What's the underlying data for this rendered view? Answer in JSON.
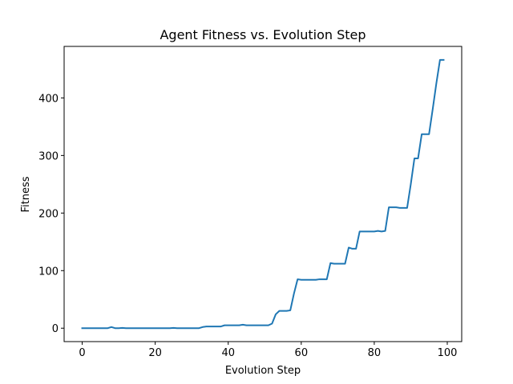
{
  "chart_data": {
    "type": "line",
    "title": "Agent Fitness vs. Evolution Step",
    "xlabel": "Evolution Step",
    "ylabel": "Fitness",
    "xlim": [
      -4.95,
      103.95
    ],
    "ylim": [
      -23.3,
      489.5
    ],
    "xticks": [
      0,
      20,
      40,
      60,
      80,
      100
    ],
    "yticks": [
      0,
      100,
      200,
      300,
      400
    ],
    "grid": false,
    "color": "#1f77b4",
    "series": [
      {
        "name": "fitness",
        "x": [
          0,
          1,
          2,
          3,
          4,
          5,
          6,
          7,
          8,
          9,
          10,
          11,
          12,
          13,
          14,
          15,
          16,
          17,
          18,
          19,
          20,
          21,
          22,
          23,
          24,
          25,
          26,
          27,
          28,
          29,
          30,
          31,
          32,
          33,
          34,
          35,
          36,
          37,
          38,
          39,
          40,
          41,
          42,
          43,
          44,
          45,
          46,
          47,
          48,
          49,
          50,
          51,
          52,
          53,
          54,
          55,
          56,
          57,
          58,
          59,
          60,
          61,
          62,
          63,
          64,
          65,
          66,
          67,
          68,
          69,
          70,
          71,
          72,
          73,
          74,
          75,
          76,
          77,
          78,
          79,
          80,
          81,
          82,
          83,
          84,
          85,
          86,
          87,
          88,
          89,
          90,
          91,
          92,
          93,
          94,
          95,
          96,
          97,
          98,
          99
        ],
        "y": [
          0,
          0,
          0,
          0,
          0,
          0,
          0,
          0,
          2,
          0,
          0,
          0.5,
          0,
          0,
          0,
          0,
          0,
          0,
          0,
          0,
          0,
          0,
          0,
          0,
          0,
          0.5,
          0,
          0,
          0,
          0,
          0,
          0,
          0,
          2,
          3,
          3,
          3,
          3,
          3,
          5,
          5,
          5,
          5,
          5,
          6,
          5,
          5,
          5,
          5,
          5,
          5,
          5,
          8,
          24,
          30,
          30,
          30,
          31,
          60,
          85,
          84,
          84,
          84,
          84,
          84,
          85,
          85,
          85,
          113,
          112,
          112,
          112,
          112,
          140,
          138,
          138,
          168,
          168,
          168,
          168,
          168,
          169,
          168,
          169,
          210,
          210,
          210,
          209,
          209,
          209,
          250,
          295,
          295,
          337,
          337,
          337,
          380,
          425,
          466,
          466
        ]
      }
    ]
  }
}
